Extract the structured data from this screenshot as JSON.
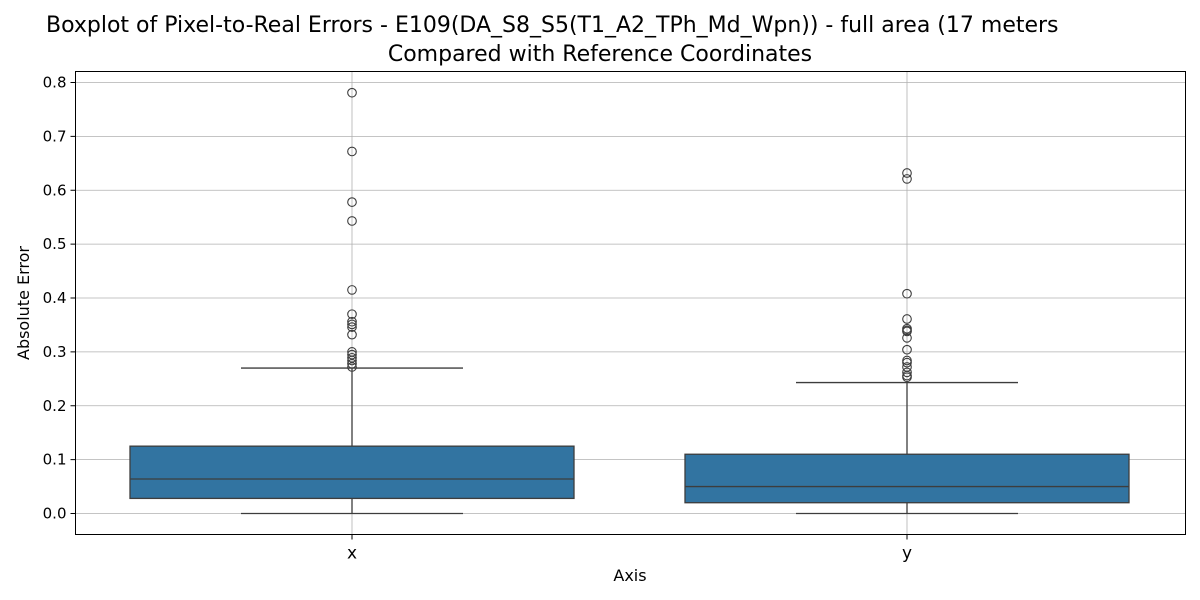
{
  "chart_data": {
    "type": "boxplot",
    "title_line1": "Boxplot of Pixel-to-Real Errors - E109(DA_S8_S5(T1_A2_TPh_Md_Wpn)) - full area (17 meters",
    "title_line2": "Compared with Reference Coordinates",
    "xlabel": "Axis",
    "ylabel": "Absolute Error",
    "ylim": [
      -0.04,
      0.82
    ],
    "yticks": [
      0.0,
      0.1,
      0.2,
      0.3,
      0.4,
      0.5,
      0.6,
      0.7,
      0.8
    ],
    "ytick_labels": [
      "0.0",
      "0.1",
      "0.2",
      "0.3",
      "0.4",
      "0.5",
      "0.6",
      "0.7",
      "0.8"
    ],
    "grid": true,
    "box_color": "#3274a1",
    "categories": [
      "x",
      "y"
    ],
    "boxes": [
      {
        "category": "x",
        "whisker_low": 0.0,
        "q1": 0.028,
        "median": 0.064,
        "q3": 0.125,
        "whisker_high": 0.27,
        "outliers": [
          0.781,
          0.672,
          0.578,
          0.543,
          0.415,
          0.37,
          0.356,
          0.351,
          0.346,
          0.332,
          0.3,
          0.295,
          0.289,
          0.284,
          0.278,
          0.272
        ]
      },
      {
        "category": "y",
        "whisker_low": 0.0,
        "q1": 0.02,
        "median": 0.05,
        "q3": 0.11,
        "whisker_high": 0.243,
        "outliers": [
          0.632,
          0.621,
          0.408,
          0.361,
          0.343,
          0.34,
          0.338,
          0.326,
          0.304,
          0.284,
          0.28,
          0.272,
          0.262,
          0.256,
          0.253
        ]
      }
    ]
  }
}
